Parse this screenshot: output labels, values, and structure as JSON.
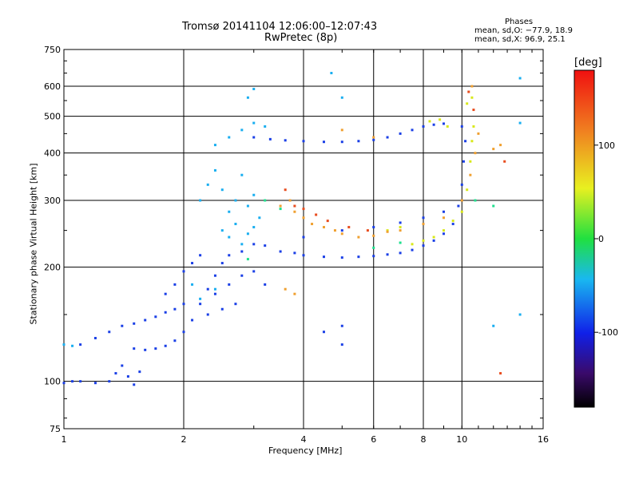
{
  "chart_data": {
    "type": "scatter",
    "title": "Tromsø 20141104 12:06:00–12:07:43",
    "subtitle": "RwPretec (8p)",
    "xlabel": "Frequency [MHz]",
    "ylabel": "Stationary phase Virtual Height [km]",
    "x_scale": "log",
    "y_scale": "log",
    "xlim": [
      1,
      16
    ],
    "ylim": [
      75,
      750
    ],
    "x_ticks": [
      1,
      2,
      4,
      6,
      8,
      10,
      16
    ],
    "x_tick_labels": [
      "1",
      "2",
      "4",
      "6",
      "8",
      "10",
      "16"
    ],
    "y_ticks": [
      75,
      100,
      200,
      300,
      400,
      500,
      600,
      750
    ],
    "y_tick_labels": [
      "75",
      "100",
      "200",
      "300",
      "400",
      "500",
      "600",
      "750"
    ],
    "grid": true,
    "stats": {
      "heading": "Phases",
      "line_o": "mean, sd,O: −77.9, 18.9",
      "line_x": "mean, sd,X:  96.9, 25.1"
    },
    "colorbar": {
      "label": "[deg]",
      "range": [
        -180,
        180
      ],
      "ticks": [
        100,
        0,
        -100
      ],
      "tick_labels": [
        "100",
        "0",
        "-100"
      ]
    },
    "series": [
      {
        "color": "#1a3fe6",
        "points": [
          [
            1.0,
            99
          ],
          [
            1.05,
            100
          ],
          [
            1.1,
            100
          ],
          [
            1.2,
            99
          ],
          [
            1.3,
            100
          ],
          [
            1.35,
            105
          ],
          [
            1.4,
            110
          ],
          [
            1.45,
            103
          ],
          [
            1.5,
            98
          ],
          [
            1.55,
            106
          ],
          [
            1.1,
            125
          ],
          [
            1.2,
            130
          ],
          [
            1.3,
            135
          ],
          [
            1.4,
            140
          ],
          [
            1.5,
            142
          ],
          [
            1.6,
            145
          ],
          [
            1.7,
            148
          ],
          [
            1.8,
            152
          ],
          [
            1.9,
            155
          ],
          [
            2.0,
            160
          ],
          [
            1.5,
            122
          ],
          [
            1.6,
            121
          ],
          [
            1.7,
            122
          ],
          [
            1.8,
            124
          ],
          [
            1.9,
            128
          ],
          [
            2.0,
            135
          ],
          [
            2.1,
            145
          ],
          [
            2.2,
            160
          ],
          [
            2.3,
            175
          ],
          [
            2.4,
            190
          ],
          [
            2.5,
            205
          ],
          [
            1.8,
            170
          ],
          [
            1.9,
            180
          ],
          [
            2.0,
            195
          ],
          [
            2.1,
            205
          ],
          [
            2.2,
            215
          ],
          [
            2.6,
            215
          ],
          [
            2.8,
            220
          ],
          [
            3.0,
            230
          ],
          [
            3.2,
            228
          ],
          [
            3.5,
            220
          ],
          [
            3.8,
            218
          ],
          [
            4.0,
            215
          ],
          [
            4.5,
            213
          ],
          [
            5.0,
            212
          ],
          [
            5.5,
            213
          ],
          [
            6.0,
            214
          ],
          [
            6.5,
            216
          ],
          [
            7.0,
            218
          ],
          [
            7.5,
            222
          ],
          [
            8.0,
            228
          ],
          [
            8.5,
            235
          ],
          [
            9.0,
            245
          ],
          [
            9.5,
            260
          ],
          [
            9.8,
            290
          ],
          [
            10.0,
            330
          ],
          [
            10.1,
            380
          ],
          [
            10.2,
            430
          ],
          [
            10.0,
            470
          ],
          [
            3.0,
            440
          ],
          [
            3.3,
            435
          ],
          [
            3.6,
            432
          ],
          [
            4.0,
            430
          ],
          [
            4.5,
            428
          ],
          [
            5.0,
            428
          ],
          [
            5.5,
            430
          ],
          [
            6.0,
            433
          ],
          [
            6.5,
            440
          ],
          [
            7.0,
            450
          ],
          [
            7.5,
            460
          ],
          [
            8.0,
            470
          ],
          [
            8.5,
            475
          ],
          [
            9.0,
            478
          ],
          [
            4.0,
            240
          ],
          [
            5.0,
            250
          ],
          [
            6.0,
            255
          ],
          [
            7.0,
            262
          ],
          [
            8.0,
            270
          ],
          [
            9.0,
            280
          ],
          [
            2.4,
            170
          ],
          [
            2.6,
            180
          ],
          [
            2.8,
            190
          ],
          [
            3.0,
            195
          ],
          [
            3.2,
            180
          ],
          [
            2.3,
            150
          ],
          [
            2.5,
            155
          ],
          [
            2.7,
            160
          ],
          [
            5.0,
            140
          ],
          [
            5.0,
            125
          ],
          [
            4.5,
            135
          ]
        ]
      },
      {
        "color": "#19aef0",
        "points": [
          [
            1.0,
            125
          ],
          [
            1.05,
            124
          ],
          [
            2.2,
            300
          ],
          [
            2.3,
            330
          ],
          [
            2.4,
            360
          ],
          [
            2.5,
            320
          ],
          [
            2.6,
            280
          ],
          [
            2.7,
            300
          ],
          [
            2.8,
            350
          ],
          [
            2.9,
            290
          ],
          [
            3.0,
            310
          ],
          [
            3.1,
            270
          ],
          [
            2.5,
            250
          ],
          [
            2.6,
            240
          ],
          [
            2.7,
            260
          ],
          [
            2.8,
            230
          ],
          [
            2.9,
            245
          ],
          [
            3.0,
            255
          ],
          [
            2.4,
            420
          ],
          [
            2.6,
            440
          ],
          [
            2.8,
            460
          ],
          [
            3.0,
            480
          ],
          [
            3.2,
            470
          ],
          [
            2.9,
            560
          ],
          [
            3.0,
            590
          ],
          [
            4.7,
            650
          ],
          [
            5.0,
            560
          ],
          [
            2.1,
            180
          ],
          [
            2.2,
            165
          ],
          [
            2.4,
            175
          ],
          [
            14.0,
            630
          ],
          [
            14.0,
            480
          ],
          [
            14.0,
            150
          ],
          [
            12.0,
            140
          ]
        ]
      },
      {
        "color": "#1fe08e",
        "points": [
          [
            2.9,
            210
          ],
          [
            3.2,
            300
          ],
          [
            3.5,
            285
          ],
          [
            6.0,
            225
          ],
          [
            7.0,
            232
          ],
          [
            10.8,
            300
          ],
          [
            12.0,
            290
          ]
        ]
      },
      {
        "color": "#d8e81a",
        "points": [
          [
            7.5,
            230
          ],
          [
            8.0,
            235
          ],
          [
            8.5,
            240
          ],
          [
            9.0,
            250
          ],
          [
            9.5,
            265
          ],
          [
            10.0,
            280
          ],
          [
            10.3,
            320
          ],
          [
            10.5,
            380
          ],
          [
            10.6,
            430
          ],
          [
            10.7,
            470
          ],
          [
            8.3,
            485
          ],
          [
            8.8,
            490
          ],
          [
            9.2,
            470
          ],
          [
            6.5,
            250
          ],
          [
            7.0,
            255
          ],
          [
            10.3,
            540
          ],
          [
            10.6,
            560
          ]
        ]
      },
      {
        "color": "#f0a030",
        "points": [
          [
            3.5,
            290
          ],
          [
            3.7,
            300
          ],
          [
            3.8,
            280
          ],
          [
            4.0,
            270
          ],
          [
            4.2,
            260
          ],
          [
            4.5,
            255
          ],
          [
            4.8,
            250
          ],
          [
            5.0,
            245
          ],
          [
            5.5,
            240
          ],
          [
            6.0,
            242
          ],
          [
            6.5,
            248
          ],
          [
            7.0,
            250
          ],
          [
            8.0,
            260
          ],
          [
            9.0,
            270
          ],
          [
            10.0,
            300
          ],
          [
            10.5,
            350
          ],
          [
            10.8,
            400
          ],
          [
            11.0,
            450
          ],
          [
            3.6,
            175
          ],
          [
            3.8,
            170
          ],
          [
            5.0,
            460
          ],
          [
            6.0,
            440
          ],
          [
            10.6,
            600
          ],
          [
            12.5,
            420
          ],
          [
            12.0,
            410
          ]
        ]
      },
      {
        "color": "#e84c1e",
        "points": [
          [
            3.6,
            320
          ],
          [
            3.8,
            290
          ],
          [
            4.0,
            285
          ],
          [
            4.3,
            275
          ],
          [
            4.6,
            265
          ],
          [
            5.2,
            255
          ],
          [
            5.8,
            250
          ],
          [
            10.4,
            580
          ],
          [
            10.7,
            520
          ],
          [
            12.8,
            380
          ],
          [
            12.5,
            105
          ]
        ]
      }
    ]
  }
}
